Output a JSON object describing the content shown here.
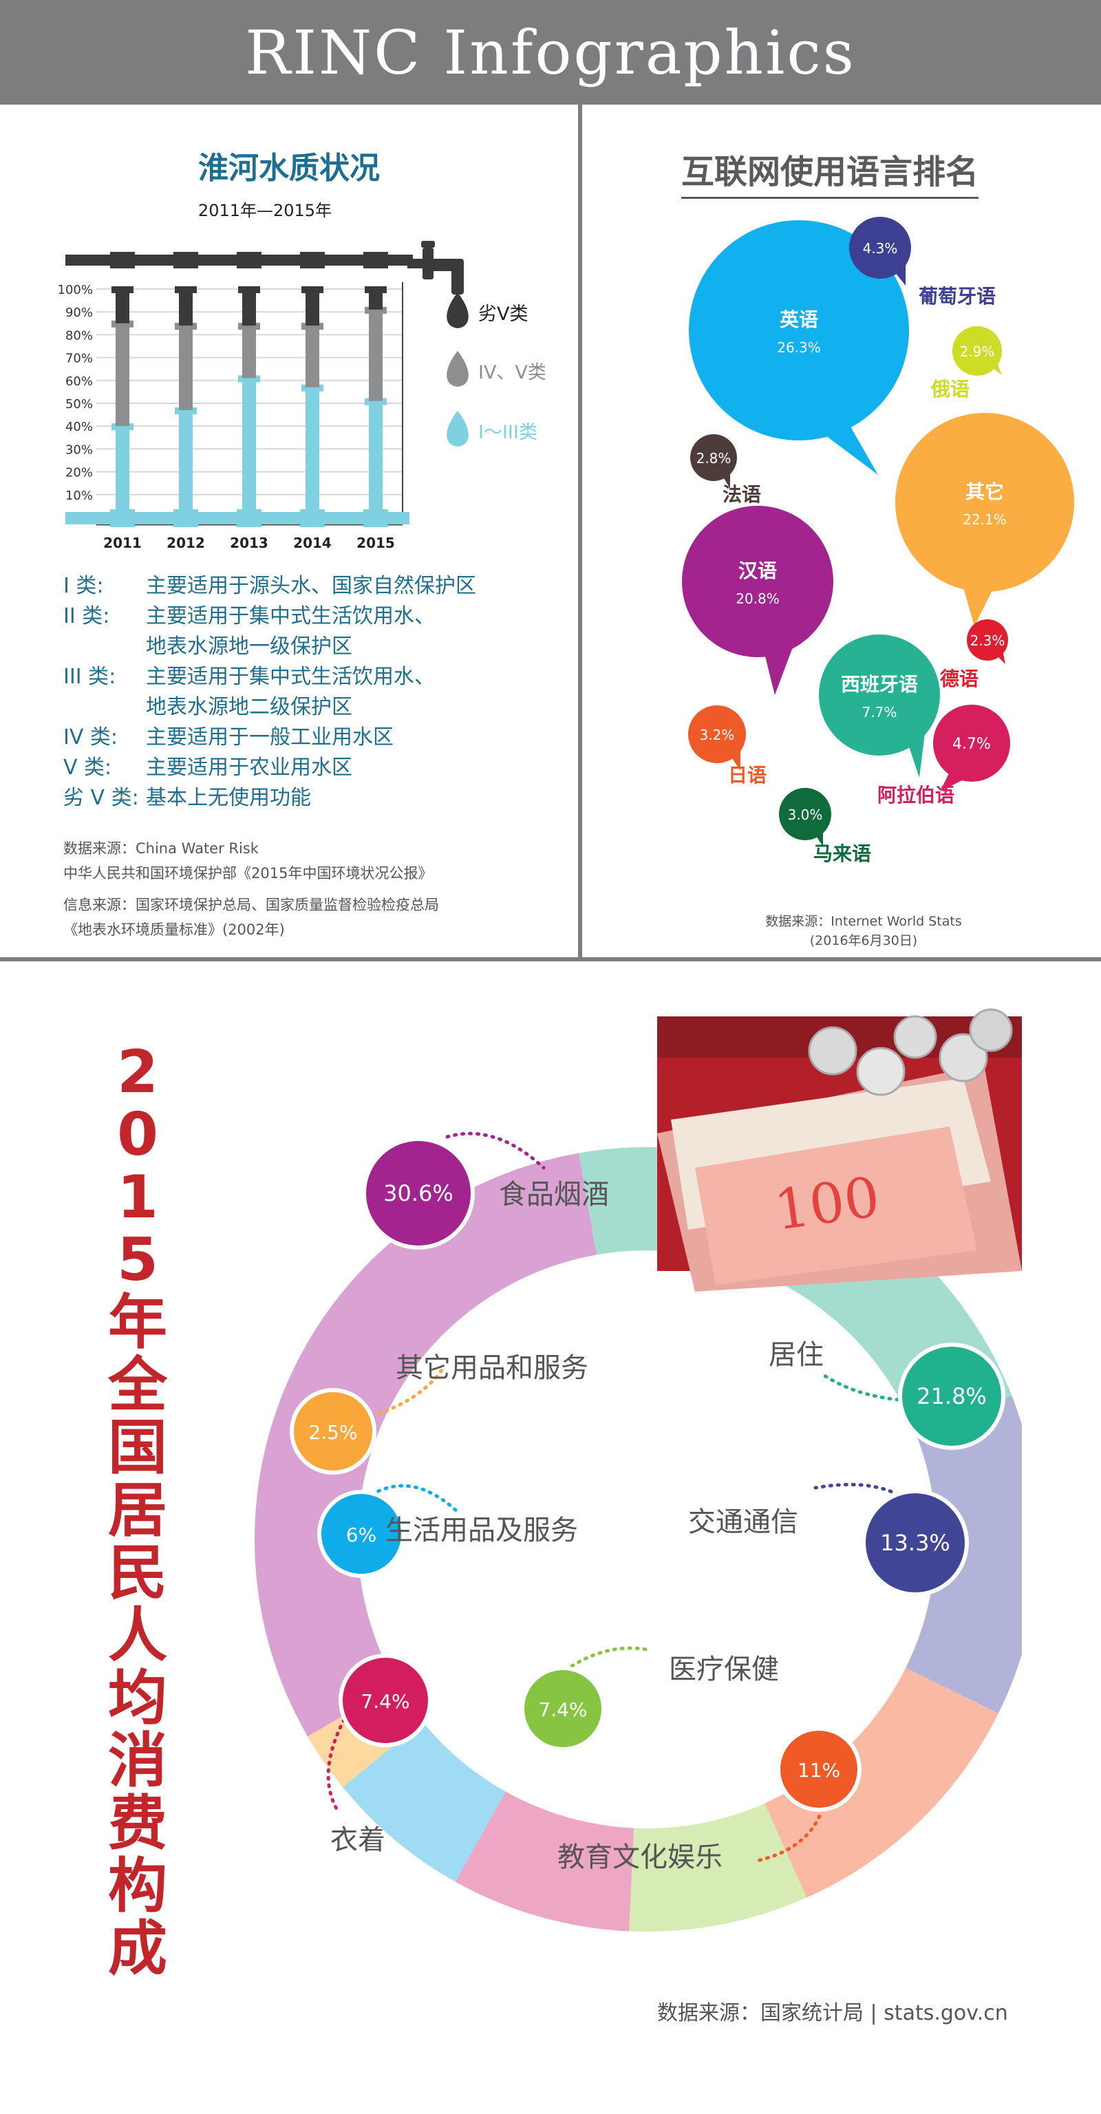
{
  "header": {
    "title": "RINC Infographics"
  },
  "water": {
    "title": "淮河水质状况",
    "subtitle": "2011年—2015年",
    "y_ticks": [
      "100%",
      "90%",
      "80%",
      "70%",
      "60%",
      "50%",
      "40%",
      "30%",
      "20%",
      "10%"
    ],
    "legend": [
      {
        "label": "劣V类",
        "color": "#3a3a3c"
      },
      {
        "label": "IV、V类",
        "color": "#8d8e90"
      },
      {
        "label": "I～III类",
        "color": "#7fd0e0"
      }
    ],
    "definitions": [
      {
        "cls": "I 类:",
        "text": [
          "主要适用于源头水、国家自然保护区"
        ]
      },
      {
        "cls": "II 类:",
        "text": [
          "主要适用于集中式生活饮用水、",
          "地表水源地一级保护区"
        ]
      },
      {
        "cls": "III 类:",
        "text": [
          "主要适用于集中式生活饮用水、",
          "地表水源地二级保护区"
        ]
      },
      {
        "cls": "IV 类:",
        "text": [
          "主要适用于一般工业用水区"
        ]
      },
      {
        "cls": "V 类:",
        "text": [
          "主要适用于农业用水区"
        ]
      },
      {
        "cls": "劣 V 类:",
        "text": [
          "基本上无使用功能"
        ]
      }
    ],
    "sources": {
      "line1": "数据来源：China Water Risk",
      "line2": "中华人民共和国环境保护部《2015年中国环境状况公报》",
      "line3": "信息来源：国家环境保护总局、国家质量监督检验检疫总局",
      "line4": "《地表水环境质量标准》(2002年)"
    }
  },
  "lang": {
    "title": "互联网使用语言排名",
    "source_line1": "数据来源：Internet World Stats",
    "source_line2": "(2016年6月30日)"
  },
  "spend": {
    "title_chars": [
      "2",
      "0",
      "1",
      "5",
      "年",
      "全",
      "国",
      "居",
      "民",
      "人",
      "均",
      "消",
      "费",
      "构",
      "成"
    ],
    "source": "数据来源：国家统计局   |   stats.gov.cn"
  },
  "chart_data": [
    {
      "type": "bar",
      "title": "淮河水质状况",
      "subtitle": "2011年—2015年",
      "categories": [
        "2011",
        "2012",
        "2013",
        "2014",
        "2015"
      ],
      "ylim": [
        0,
        100
      ],
      "series": [
        {
          "name": "I～III类",
          "values": [
            40,
            47,
            61,
            57,
            51
          ]
        },
        {
          "name": "IV、V类",
          "values": [
            45,
            37,
            23,
            27,
            40
          ]
        },
        {
          "name": "劣V类",
          "values": [
            15,
            16,
            16,
            16,
            9
          ]
        }
      ]
    },
    {
      "type": "bubble",
      "title": "互联网使用语言排名",
      "items": [
        {
          "name": "英语",
          "value": "26.3%",
          "color": "#11b0ee"
        },
        {
          "name": "其它",
          "value": "22.1%",
          "color": "#fbad41"
        },
        {
          "name": "汉语",
          "value": "20.8%",
          "color": "#a3248f"
        },
        {
          "name": "西班牙语",
          "value": "7.7%",
          "color": "#27b393"
        },
        {
          "name": "阿拉伯语",
          "value": "4.7%",
          "color": "#d51f5f"
        },
        {
          "name": "葡萄牙语",
          "value": "4.3%",
          "color": "#3c3f92"
        },
        {
          "name": "日语",
          "value": "3.2%",
          "color": "#ef5a29"
        },
        {
          "name": "马来语",
          "value": "3.0%",
          "color": "#0f6b3c"
        },
        {
          "name": "俄语",
          "value": "2.9%",
          "color": "#cfdc25"
        },
        {
          "name": "法语",
          "value": "2.8%",
          "color": "#4e3c3a"
        },
        {
          "name": "德语",
          "value": "2.3%",
          "color": "#e01e2f"
        }
      ]
    },
    {
      "type": "pie",
      "title": "2015年全国居民人均消费构成",
      "slices": [
        {
          "label": "食品烟酒",
          "value": 30.6,
          "text": "30.6%",
          "ring": "#d9a2d2",
          "color": "#a3248f"
        },
        {
          "label": "居住",
          "value": 21.8,
          "text": "21.8%",
          "ring": "#a4ddd0",
          "color": "#22b18f"
        },
        {
          "label": "交通通信",
          "value": 13.3,
          "text": "13.3%",
          "ring": "#b1b3d8",
          "color": "#404596"
        },
        {
          "label": "教育文化娱乐",
          "value": 11,
          "text": "11%",
          "ring": "#f9b9a2",
          "color": "#ef5a27"
        },
        {
          "label": "医疗保健",
          "value": 7.4,
          "text": "7.4%",
          "ring": "#d6ecb4",
          "color": "#86c441"
        },
        {
          "label": "衣着",
          "value": 7.4,
          "text": "7.4%",
          "ring": "#eda6c3",
          "color": "#d41d5f"
        },
        {
          "label": "生活用品及服务",
          "value": 6,
          "text": "6%",
          "ring": "#9fdbf3",
          "color": "#10abe9"
        },
        {
          "label": "其它用品和服务",
          "value": 2.5,
          "text": "2.5%",
          "ring": "#fdd9a0",
          "color": "#f9a73a"
        }
      ]
    }
  ]
}
